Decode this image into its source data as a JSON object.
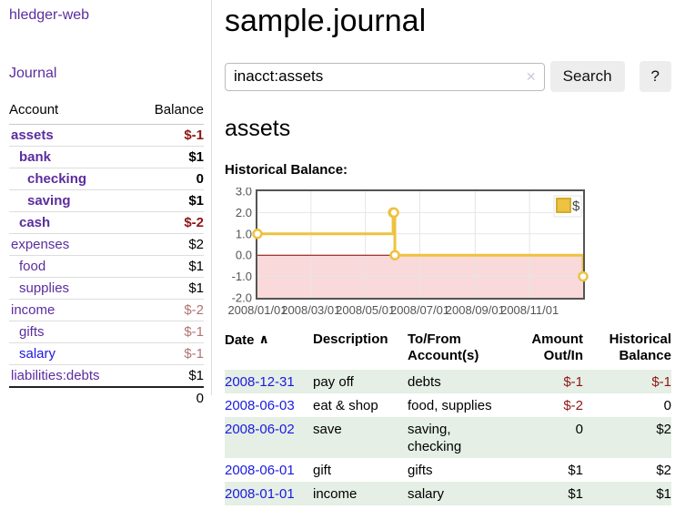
{
  "colors": {
    "accent_purple": "#5b2d9e",
    "link_blue": "#1a1ae0",
    "negative_red": "#8e1616",
    "negative_muted_red": "#b17373",
    "row_stripe_green": "#e5efe5",
    "chart_line_yellow": "#edc240",
    "chart_negative_pink": "#f9d9d9",
    "chart_zero_line": "#8b0000"
  },
  "icons": {
    "clear": "✕",
    "sort_asc": "∧"
  },
  "sidebar": {
    "app_title": "hledger-web",
    "journal_label": "Journal",
    "accounts": {
      "header_account": "Account",
      "header_balance": "Balance",
      "rows": [
        {
          "name": "assets",
          "balance": "$-1",
          "indent": 0,
          "bold": true,
          "balance_class": "neg"
        },
        {
          "name": "bank",
          "balance": "$1",
          "indent": 1,
          "bold": true,
          "balance_class": ""
        },
        {
          "name": "checking",
          "balance": "0",
          "indent": 2,
          "bold": true,
          "balance_class": ""
        },
        {
          "name": "saving",
          "balance": "$1",
          "indent": 2,
          "bold": true,
          "balance_class": ""
        },
        {
          "name": "cash",
          "balance": "$-2",
          "indent": 1,
          "bold": true,
          "balance_class": "neg"
        },
        {
          "name": "expenses",
          "balance": "$2",
          "indent": 0,
          "bold": false,
          "balance_class": ""
        },
        {
          "name": "food",
          "balance": "$1",
          "indent": 1,
          "bold": false,
          "balance_class": ""
        },
        {
          "name": "supplies",
          "balance": "$1",
          "indent": 1,
          "bold": false,
          "balance_class": ""
        },
        {
          "name": "income",
          "balance": "$-2",
          "indent": 0,
          "bold": false,
          "balance_class": "negmuted"
        },
        {
          "name": "gifts",
          "balance": "$-1",
          "indent": 1,
          "bold": false,
          "balance_class": "negmuted"
        },
        {
          "name": "salary",
          "balance": "$-1",
          "indent": 1,
          "bold": false,
          "balance_class": "negmuted",
          "blue": true
        },
        {
          "name": "liabilities:debts",
          "balance": "$1",
          "indent": 0,
          "bold": false,
          "balance_class": ""
        }
      ],
      "total": "0"
    }
  },
  "main": {
    "title": "sample.journal",
    "search": {
      "value": "inacct:assets",
      "button_label": "Search",
      "help_label": "?"
    },
    "account_heading": "assets"
  },
  "chart_data": {
    "type": "line",
    "title": "Historical Balance:",
    "step": true,
    "x_start": "2008-01-01",
    "xlim_days": [
      0,
      365
    ],
    "ylim": [
      -2,
      3
    ],
    "y_ticks": [
      "3.0",
      "2.0",
      "1.0",
      "0.0",
      "-1.0",
      "-2.0"
    ],
    "x_ticks": [
      "2008/01/01",
      "2008/03/01",
      "2008/05/01",
      "2008/07/01",
      "2008/09/01",
      "2008/11/01"
    ],
    "series": [
      {
        "name": "$",
        "color": "#edc240",
        "points": [
          [
            "2008-01-01",
            1
          ],
          [
            "2008-06-01",
            2
          ],
          [
            "2008-06-02",
            2
          ],
          [
            "2008-06-03",
            0
          ],
          [
            "2008-12-31",
            -1
          ]
        ]
      }
    ],
    "legend": {
      "label": "$",
      "position": "top-right"
    },
    "grid": true,
    "negative_region_color": "#f9d9d9",
    "zero_line_color": "#8b0000"
  },
  "register": {
    "headers": {
      "date": "Date",
      "description": "Description",
      "accounts": "To/From Account(s)",
      "amount": "Amount Out/In",
      "balance": "Historical Balance"
    },
    "rows": [
      {
        "date": "2008-12-31",
        "description": "pay off",
        "accounts": "debts",
        "amount": "$-1",
        "amount_class": "neg",
        "balance": "$-1",
        "balance_class": "neg"
      },
      {
        "date": "2008-06-03",
        "description": "eat & shop",
        "accounts": "food, supplies",
        "amount": "$-2",
        "amount_class": "neg",
        "balance": "0",
        "balance_class": ""
      },
      {
        "date": "2008-06-02",
        "description": "save",
        "accounts": "saving, checking",
        "amount": "0",
        "amount_class": "",
        "balance": "$2",
        "balance_class": ""
      },
      {
        "date": "2008-06-01",
        "description": "gift",
        "accounts": "gifts",
        "amount": "$1",
        "amount_class": "",
        "balance": "$2",
        "balance_class": ""
      },
      {
        "date": "2008-01-01",
        "description": "income",
        "accounts": "salary",
        "amount": "$1",
        "amount_class": "",
        "balance": "$1",
        "balance_class": ""
      }
    ]
  }
}
